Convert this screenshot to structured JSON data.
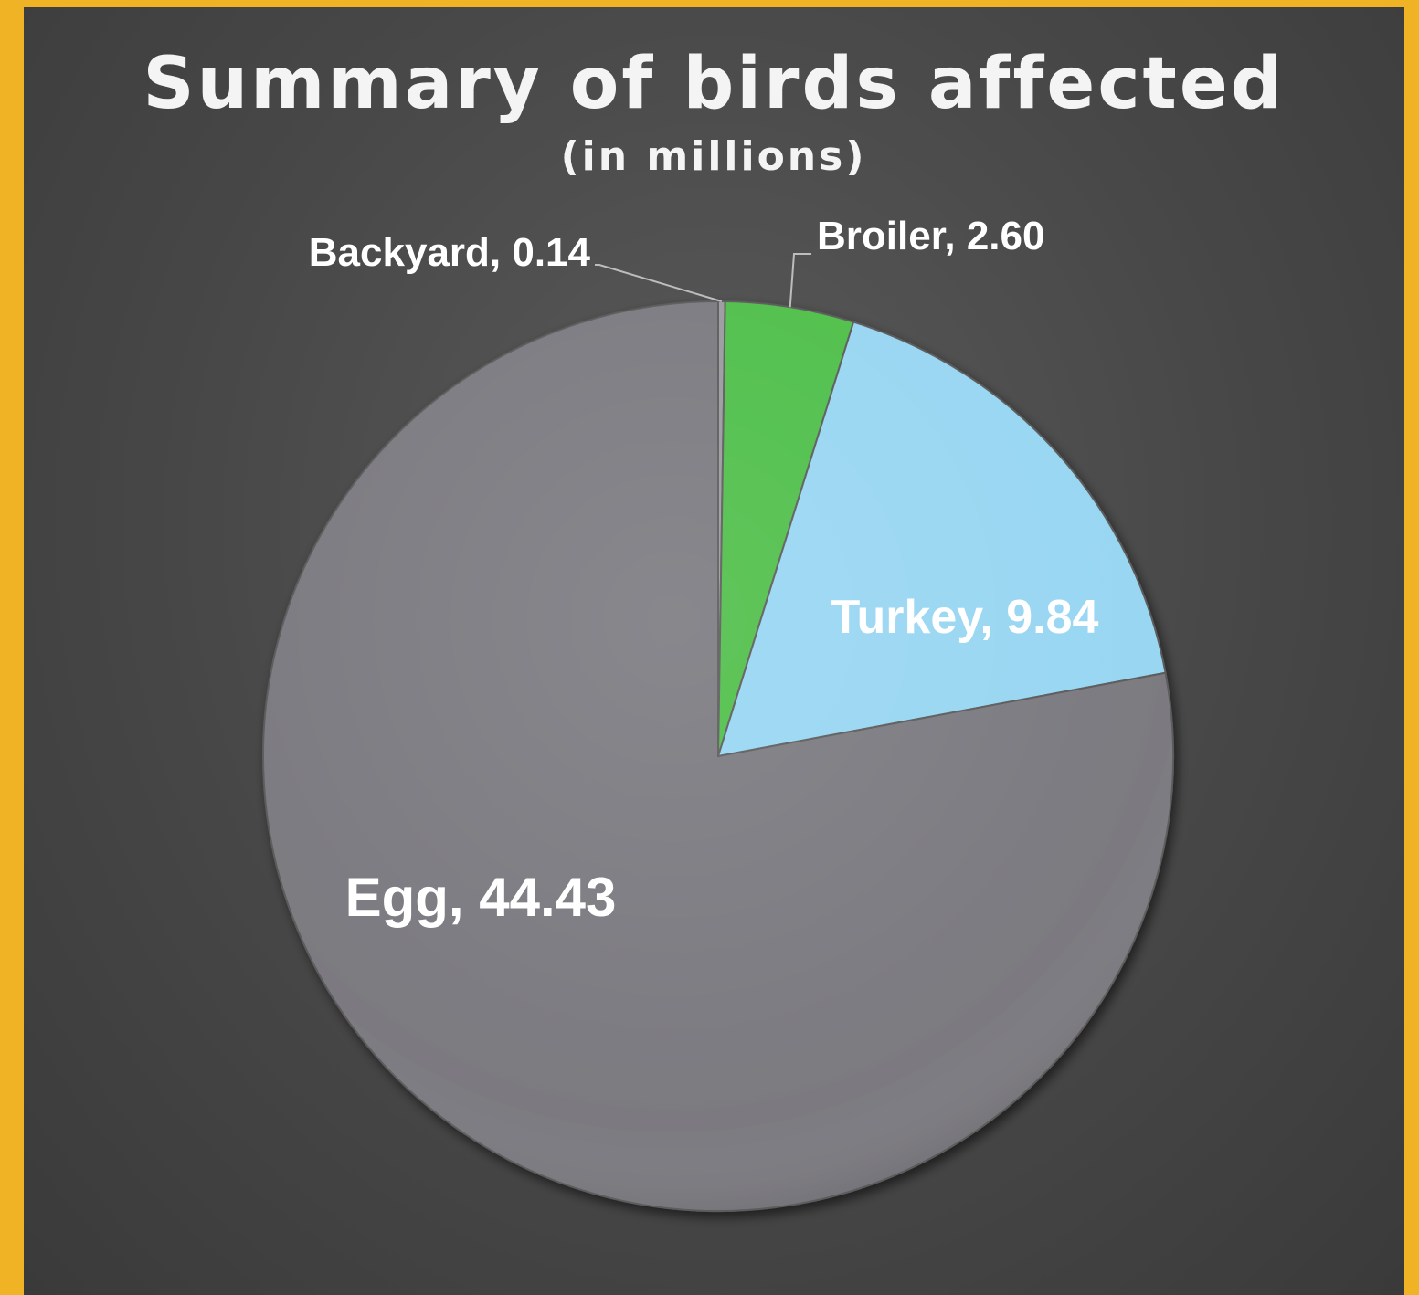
{
  "chart_data": {
    "type": "pie",
    "title": "Summary of birds affected",
    "subtitle": "(in millions)",
    "slices": [
      {
        "name": "Backyard",
        "value": 0.14,
        "label": "Backyard, 0.14",
        "color": "#9a9aa0"
      },
      {
        "name": "Broiler",
        "value": 2.6,
        "label": "Broiler, 2.60",
        "color": "#4fbf4a"
      },
      {
        "name": "Turkey",
        "value": 9.84,
        "label": "Turkey, 9.84",
        "color": "#98d6f2"
      },
      {
        "name": "Egg",
        "value": 44.43,
        "label": "Egg, 44.43",
        "color": "#7b7a80"
      }
    ],
    "start_angle": "12 o'clock",
    "direction": "clockwise",
    "legend": "none",
    "data_labels": "category name and value"
  },
  "colors": {
    "frame_border": "#EFB325",
    "background": "#474747",
    "text": "#ffffff"
  }
}
